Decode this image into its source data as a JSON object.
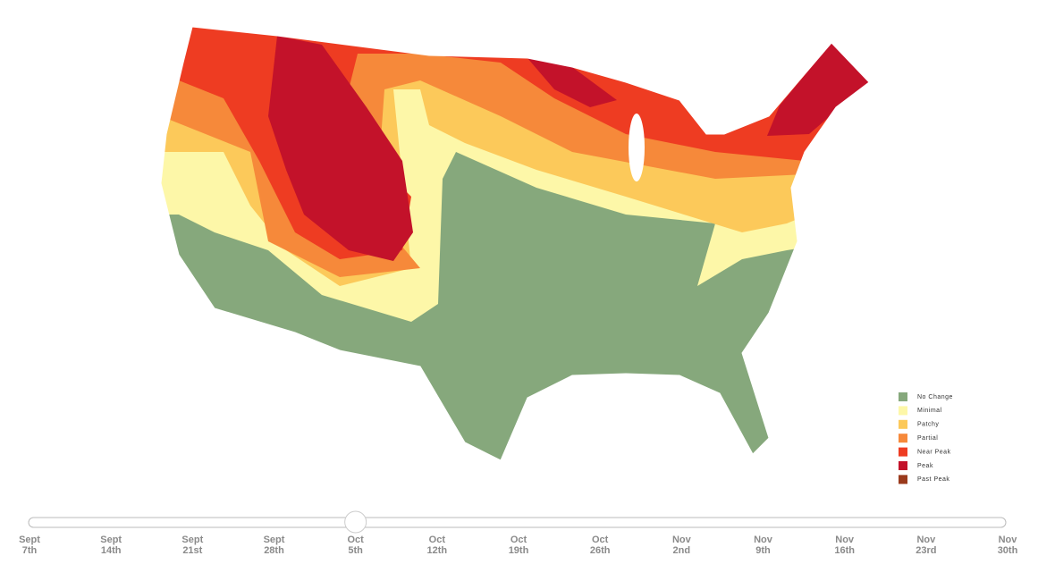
{
  "legend": [
    {
      "name": "No Change",
      "color": "#86a87c"
    },
    {
      "name": "Minimal",
      "color": "#fdf7a8"
    },
    {
      "name": "Patchy",
      "color": "#fcc95a"
    },
    {
      "name": "Partial",
      "color": "#f6893a"
    },
    {
      "name": "Near Peak",
      "color": "#ee3c22"
    },
    {
      "name": "Peak",
      "color": "#c3122a"
    },
    {
      "name": "Past Peak",
      "color": "#9a3a1c"
    }
  ],
  "slider": {
    "selected": 4,
    "labels": [
      {
        "month": "Sept",
        "day": "7th"
      },
      {
        "month": "Sept",
        "day": "14th"
      },
      {
        "month": "Sept",
        "day": "21st"
      },
      {
        "month": "Sept",
        "day": "28th"
      },
      {
        "month": "Oct",
        "day": "5th"
      },
      {
        "month": "Oct",
        "day": "12th"
      },
      {
        "month": "Oct",
        "day": "19th"
      },
      {
        "month": "Oct",
        "day": "26th"
      },
      {
        "month": "Nov",
        "day": "2nd"
      },
      {
        "month": "Nov",
        "day": "9th"
      },
      {
        "month": "Nov",
        "day": "16th"
      },
      {
        "month": "Nov",
        "day": "23rd"
      },
      {
        "month": "Nov",
        "day": "30th"
      }
    ]
  }
}
